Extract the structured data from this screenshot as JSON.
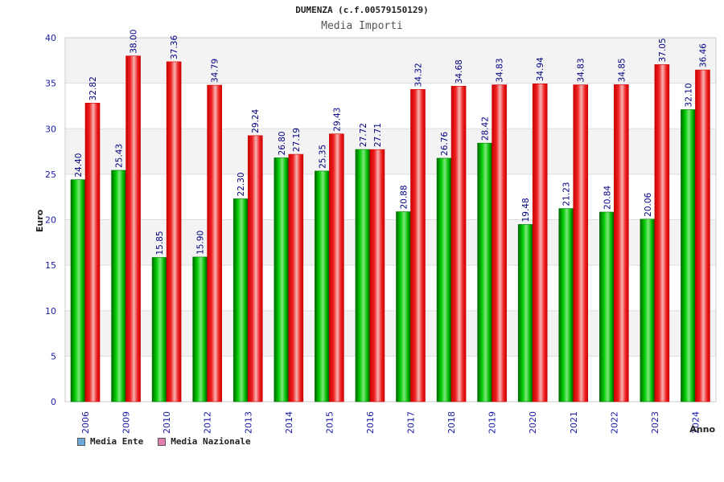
{
  "chart_data": {
    "type": "bar",
    "title": "DUMENZA (c.f.00579150129)",
    "subtitle": "Media Importi",
    "ylabel": "Euro",
    "xlabel": "Anno",
    "ylim": [
      0,
      40
    ],
    "yticks": [
      0,
      5,
      10,
      15,
      20,
      25,
      30,
      35,
      40
    ],
    "grid": true,
    "legend_position": "bottom-left",
    "categories": [
      "2006",
      "2009",
      "2010",
      "2012",
      "2013",
      "2014",
      "2015",
      "2016",
      "2017",
      "2018",
      "2019",
      "2020",
      "2021",
      "2022",
      "2023",
      "2024"
    ],
    "series": [
      {
        "name": "Media Ente",
        "color": "#00aa00",
        "legend_color": "#6fa8dc",
        "values": [
          24.4,
          25.43,
          15.85,
          15.9,
          22.3,
          26.8,
          25.35,
          27.72,
          20.88,
          26.76,
          28.42,
          19.48,
          21.23,
          20.84,
          20.06,
          32.1
        ],
        "labels": [
          "24.40",
          "25.43",
          "15.85",
          "15.90",
          "22.30",
          "26.80",
          "25.35",
          "27.72",
          "20.88",
          "26.76",
          "28.42",
          "19.48",
          "21.23",
          "20.84",
          "20.06",
          "32.10"
        ]
      },
      {
        "name": "Media Nazionale",
        "color": "#ee1111",
        "legend_color": "#e07fb0",
        "values": [
          32.82,
          38.0,
          37.36,
          34.79,
          29.24,
          27.19,
          29.43,
          27.71,
          34.32,
          34.68,
          34.83,
          34.94,
          34.83,
          34.85,
          37.05,
          36.46
        ],
        "labels": [
          "32.82",
          "38.00",
          "37.36",
          "34.79",
          "29.24",
          "27.19",
          "29.43",
          "27.71",
          "34.32",
          "34.68",
          "34.83",
          "34.94",
          "34.83",
          "34.85",
          "37.05",
          "36.46"
        ]
      }
    ]
  }
}
